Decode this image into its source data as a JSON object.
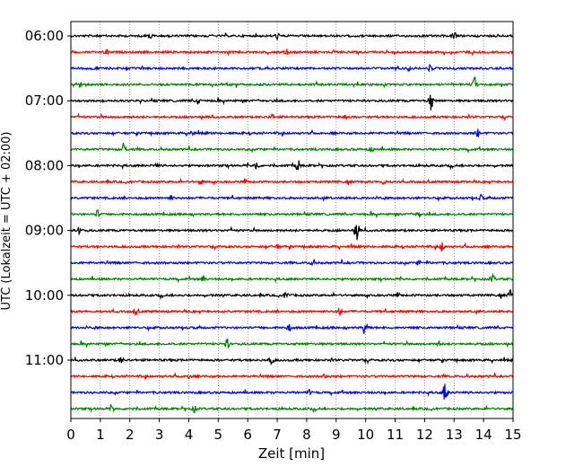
{
  "chart_data": {
    "type": "line",
    "title": "",
    "xlabel": "Zeit  [min]",
    "ylabel": "UTC (Lokalzeit = UTC + 02:00)",
    "xlim": [
      0,
      15
    ],
    "xticks": [
      0,
      1,
      2,
      3,
      4,
      5,
      6,
      7,
      8,
      9,
      10,
      11,
      12,
      13,
      14,
      15
    ],
    "y_tick_labels": [
      "06:00",
      "07:00",
      "08:00",
      "09:00",
      "10:00",
      "11:00"
    ],
    "grid": "vertical-dotted",
    "trace_colors": [
      "#000000",
      "#ff0000",
      "#0000ff",
      "#008000"
    ],
    "row_interval_minutes": 15,
    "series": [
      {
        "start": "06:00",
        "events": [
          [
            13.0,
            0.35
          ],
          [
            7.0,
            0.25
          ],
          [
            2.7,
            0.2
          ]
        ]
      },
      {
        "start": "06:15",
        "events": [
          [
            7.3,
            0.25
          ],
          [
            1.2,
            0.2
          ]
        ]
      },
      {
        "start": "06:30",
        "events": [
          [
            12.2,
            0.3
          ],
          [
            0.8,
            0.2
          ]
        ]
      },
      {
        "start": "06:45",
        "events": [
          [
            13.7,
            0.55
          ],
          [
            0.3,
            0.2
          ]
        ]
      },
      {
        "start": "07:00",
        "events": [
          [
            12.2,
            1.0
          ],
          [
            4.3,
            0.3
          ]
        ]
      },
      {
        "start": "07:15",
        "events": [
          [
            6.8,
            0.25
          ],
          [
            9.3,
            0.2
          ]
        ]
      },
      {
        "start": "07:30",
        "events": [
          [
            13.8,
            0.3
          ],
          [
            4.1,
            0.2
          ]
        ]
      },
      {
        "start": "07:45",
        "events": [
          [
            1.8,
            0.6
          ],
          [
            10.2,
            0.2
          ]
        ]
      },
      {
        "start": "08:00",
        "events": [
          [
            7.7,
            0.5
          ],
          [
            6.3,
            0.4
          ],
          [
            2.9,
            0.2
          ]
        ]
      },
      {
        "start": "08:15",
        "events": [
          [
            4.4,
            0.2
          ],
          [
            10.6,
            0.2
          ]
        ]
      },
      {
        "start": "08:30",
        "events": [
          [
            13.9,
            0.25
          ],
          [
            3.4,
            0.2
          ]
        ]
      },
      {
        "start": "08:45",
        "events": [
          [
            0.9,
            0.3
          ],
          [
            11.8,
            0.3
          ]
        ]
      },
      {
        "start": "09:00",
        "events": [
          [
            9.7,
            1.0
          ],
          [
            0.3,
            0.3
          ]
        ]
      },
      {
        "start": "09:15",
        "events": [
          [
            12.6,
            0.4
          ],
          [
            7.0,
            0.2
          ]
        ]
      },
      {
        "start": "09:30",
        "events": [
          [
            8.2,
            0.25
          ],
          [
            11.8,
            0.2
          ]
        ]
      },
      {
        "start": "09:45",
        "events": [
          [
            14.3,
            0.35
          ],
          [
            4.5,
            0.25
          ]
        ]
      },
      {
        "start": "10:00",
        "events": [
          [
            7.3,
            0.35
          ],
          [
            14.9,
            0.4
          ]
        ]
      },
      {
        "start": "10:15",
        "events": [
          [
            9.1,
            0.4
          ],
          [
            2.2,
            0.2
          ]
        ]
      },
      {
        "start": "10:30",
        "events": [
          [
            10.0,
            0.95
          ],
          [
            7.4,
            0.3
          ]
        ]
      },
      {
        "start": "10:45",
        "events": [
          [
            5.3,
            0.4
          ],
          [
            12.5,
            0.2
          ]
        ]
      },
      {
        "start": "11:00",
        "events": [
          [
            6.8,
            0.45
          ],
          [
            1.7,
            0.3
          ]
        ]
      },
      {
        "start": "11:15",
        "events": [
          [
            8.6,
            0.2
          ],
          [
            4.0,
            0.2
          ]
        ]
      },
      {
        "start": "11:30",
        "events": [
          [
            12.7,
            1.0
          ],
          [
            8.1,
            0.2
          ]
        ]
      },
      {
        "start": "11:45",
        "events": [
          [
            1.4,
            0.3
          ],
          [
            4.2,
            0.25
          ]
        ]
      }
    ]
  }
}
